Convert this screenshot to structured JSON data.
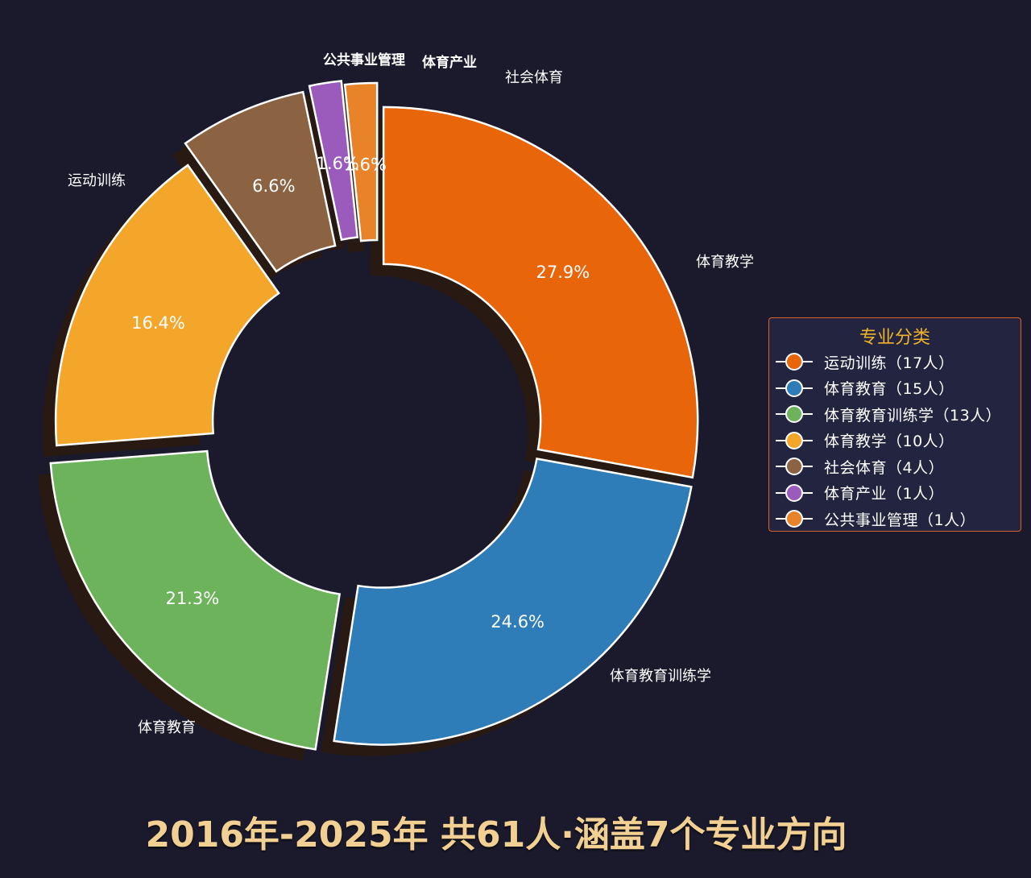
{
  "chart_data": {
    "type": "pie",
    "style": "donut",
    "legend_title": "专业分类",
    "legend_position": "right",
    "slices": [
      {
        "label": "运动训练",
        "value": 17,
        "percent": "27.9%",
        "legend": "运动训练（17人）",
        "color": "#e8650a"
      },
      {
        "label": "体育教育",
        "value": 15,
        "percent": "24.6%",
        "legend": "体育教育（15人）",
        "color": "#2f7db8"
      },
      {
        "label": "体育教育训练学",
        "value": 13,
        "percent": "21.3%",
        "legend": "体育教育训练学（13人）",
        "color": "#6db35b"
      },
      {
        "label": "体育教学",
        "value": 10,
        "percent": "16.4%",
        "legend": "体育教学（10人）",
        "color": "#f4a62a"
      },
      {
        "label": "社会体育",
        "value": 4,
        "percent": "6.6%",
        "legend": "社会体育（4人）",
        "color": "#8c6342"
      },
      {
        "label": "体育产业",
        "value": 1,
        "percent": "1.6%",
        "legend": "体育产业（1人）",
        "color": "#9b5bbd"
      },
      {
        "label": "公共事业管理",
        "value": 1,
        "percent": "1.6%",
        "legend": "公共事业管理（1人）",
        "color": "#e8832a"
      }
    ]
  },
  "footer": {
    "title": "2016年-2025年 共61人·涵盖7个专业方向"
  }
}
